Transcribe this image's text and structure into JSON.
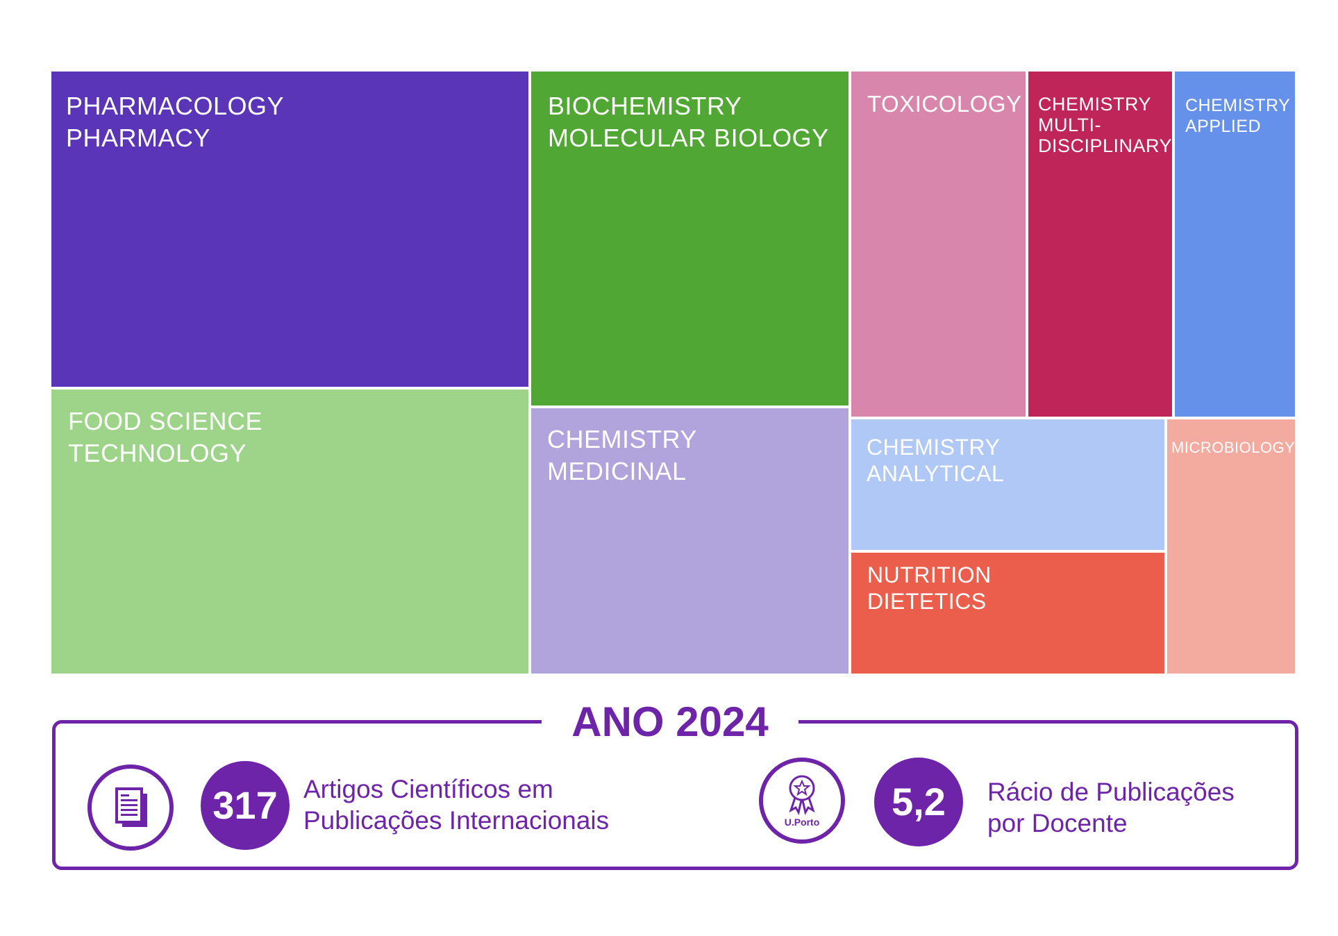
{
  "chart_data": {
    "type": "treemap",
    "categories": [
      {
        "name": "PHARMACOLOGY PHARMACY",
        "lines": [
          "PHARMACOLOGY",
          "PHARMACY"
        ],
        "color": "#5a35b7"
      },
      {
        "name": "FOOD SCIENCE TECHNOLOGY",
        "lines": [
          "FOOD SCIENCE",
          "TECHNOLOGY"
        ],
        "color": "#9dd48a"
      },
      {
        "name": "BIOCHEMISTRY MOLECULAR BIOLOGY",
        "lines": [
          "BIOCHEMISTRY",
          "MOLECULAR BIOLOGY"
        ],
        "color": "#50a733"
      },
      {
        "name": "CHEMISTRY MEDICINAL",
        "lines": [
          "CHEMISTRY",
          "MEDICINAL"
        ],
        "color": "#b1a3dc"
      },
      {
        "name": "TOXICOLOGY",
        "lines": [
          "TOXICOLOGY"
        ],
        "color": "#d986ad"
      },
      {
        "name": "CHEMISTRY MULTI-DISCIPLINARY",
        "lines": [
          "CHEMISTRY",
          "MULTI-",
          "DISCIPLINARY"
        ],
        "color": "#bf2559"
      },
      {
        "name": "CHEMISTRY APPLIED",
        "lines": [
          "CHEMISTRY",
          "APPLIED"
        ],
        "color": "#6591eb"
      },
      {
        "name": "CHEMISTRY ANALYTICAL",
        "lines": [
          "CHEMISTRY",
          "ANALYTICAL"
        ],
        "color": "#afc8f5"
      },
      {
        "name": "NUTRITION DIETETICS",
        "lines": [
          "NUTRITION",
          "DIETETICS"
        ],
        "color": "#eb5e4b"
      },
      {
        "name": "MICROBIOLOGY",
        "lines": [
          "MICROBIOLOGY"
        ],
        "color": "#f3aba0"
      }
    ]
  },
  "summary": {
    "year_title": "ANO 2024",
    "articles": {
      "icon": "document-icon",
      "value": "317",
      "label_lines": [
        "Artigos Científicos em",
        "Publicações Internacionais"
      ]
    },
    "ratio": {
      "icon": "award-ribbon-icon",
      "icon_text": "U.Porto",
      "value": "5,2",
      "label_lines": [
        "Rácio de Publicações",
        "por Docente"
      ]
    },
    "accent_color": "#6d24a8"
  }
}
